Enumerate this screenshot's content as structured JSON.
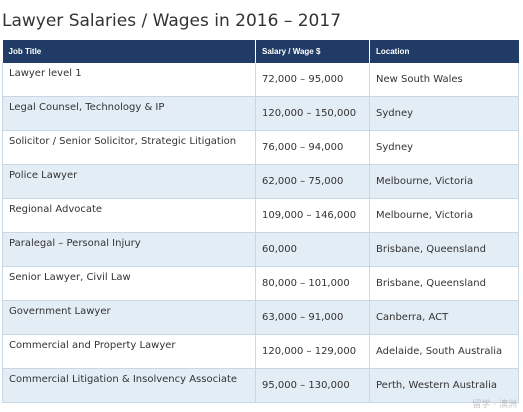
{
  "title": "Lawyer Salaries / Wages in 2016 – 2017",
  "table": {
    "headers": {
      "job_title": "Job Title",
      "salary": "Salary / Wage $",
      "location": "Location"
    },
    "rows": [
      {
        "job": "Lawyer level 1",
        "salary": "72,000 – 95,000",
        "location": "New South Wales"
      },
      {
        "job": "Legal Counsel, Technology & IP",
        "salary": "120,000 – 150,000",
        "location": "Sydney"
      },
      {
        "job": "Solicitor / Senior Solicitor, Strategic Litigation",
        "salary": "76,000 – 94,000",
        "location": "Sydney"
      },
      {
        "job": "Police Lawyer",
        "salary": "62,000 – 75,000",
        "location": "Melbourne, Victoria"
      },
      {
        "job": "Regional Advocate",
        "salary": "109,000 – 146,000",
        "location": "Melbourne, Victoria"
      },
      {
        "job": "Paralegal – Personal Injury",
        "salary": "60,000",
        "location": "Brisbane, Queensland"
      },
      {
        "job": "Senior Lawyer, Civil Law",
        "salary": "80,000 – 101,000",
        "location": "Brisbane, Queensland"
      },
      {
        "job": "Government Lawyer",
        "salary": "63,000 – 91,000",
        "location": "Canberra, ACT"
      },
      {
        "job": "Commercial and Property Lawyer",
        "salary": "120,000 – 129,000",
        "location": "Adelaide, South Australia"
      },
      {
        "job": "Commercial Litigation & Insolvency Associate",
        "salary": "95,000 – 130,000",
        "location": "Perth, Western Australia"
      }
    ]
  },
  "colors": {
    "header_bg": "#1f3b66",
    "header_text": "#ffffff",
    "row_alt_bg": "#e3edf6",
    "border": "#c9d6e3",
    "text": "#333333"
  },
  "watermark": "留学 · 澳洲"
}
